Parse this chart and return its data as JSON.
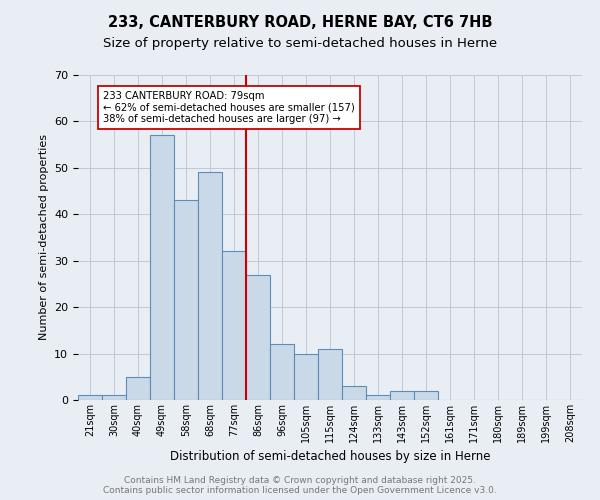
{
  "title1": "233, CANTERBURY ROAD, HERNE BAY, CT6 7HB",
  "title2": "Size of property relative to semi-detached houses in Herne",
  "xlabel": "Distribution of semi-detached houses by size in Herne",
  "ylabel": "Number of semi-detached properties",
  "bin_labels": [
    "21sqm",
    "30sqm",
    "40sqm",
    "49sqm",
    "58sqm",
    "68sqm",
    "77sqm",
    "86sqm",
    "96sqm",
    "105sqm",
    "115sqm",
    "124sqm",
    "133sqm",
    "143sqm",
    "152sqm",
    "161sqm",
    "171sqm",
    "180sqm",
    "189sqm",
    "199sqm",
    "208sqm"
  ],
  "bin_values": [
    1,
    1,
    5,
    57,
    43,
    49,
    32,
    27,
    12,
    10,
    11,
    3,
    1,
    2,
    2,
    0,
    0,
    0,
    0,
    0,
    0
  ],
  "bar_color": "#c9d9e8",
  "bar_edge_color": "#5b8db8",
  "grid_color": "#c0c8d8",
  "background_color": "#e8eef4",
  "vline_x_index": 6,
  "vline_color": "#cc0000",
  "annotation_text": "233 CANTERBURY ROAD: 79sqm\n← 62% of semi-detached houses are smaller (157)\n38% of semi-detached houses are larger (97) →",
  "annotation_box_color": "#ffffff",
  "annotation_box_edge": "#cc0000",
  "ylim": [
    0,
    70
  ],
  "yticks": [
    0,
    10,
    20,
    30,
    40,
    50,
    60,
    70
  ],
  "footer_text": "Contains HM Land Registry data © Crown copyright and database right 2025.\nContains public sector information licensed under the Open Government Licence v3.0.",
  "footer_color": "#777777"
}
